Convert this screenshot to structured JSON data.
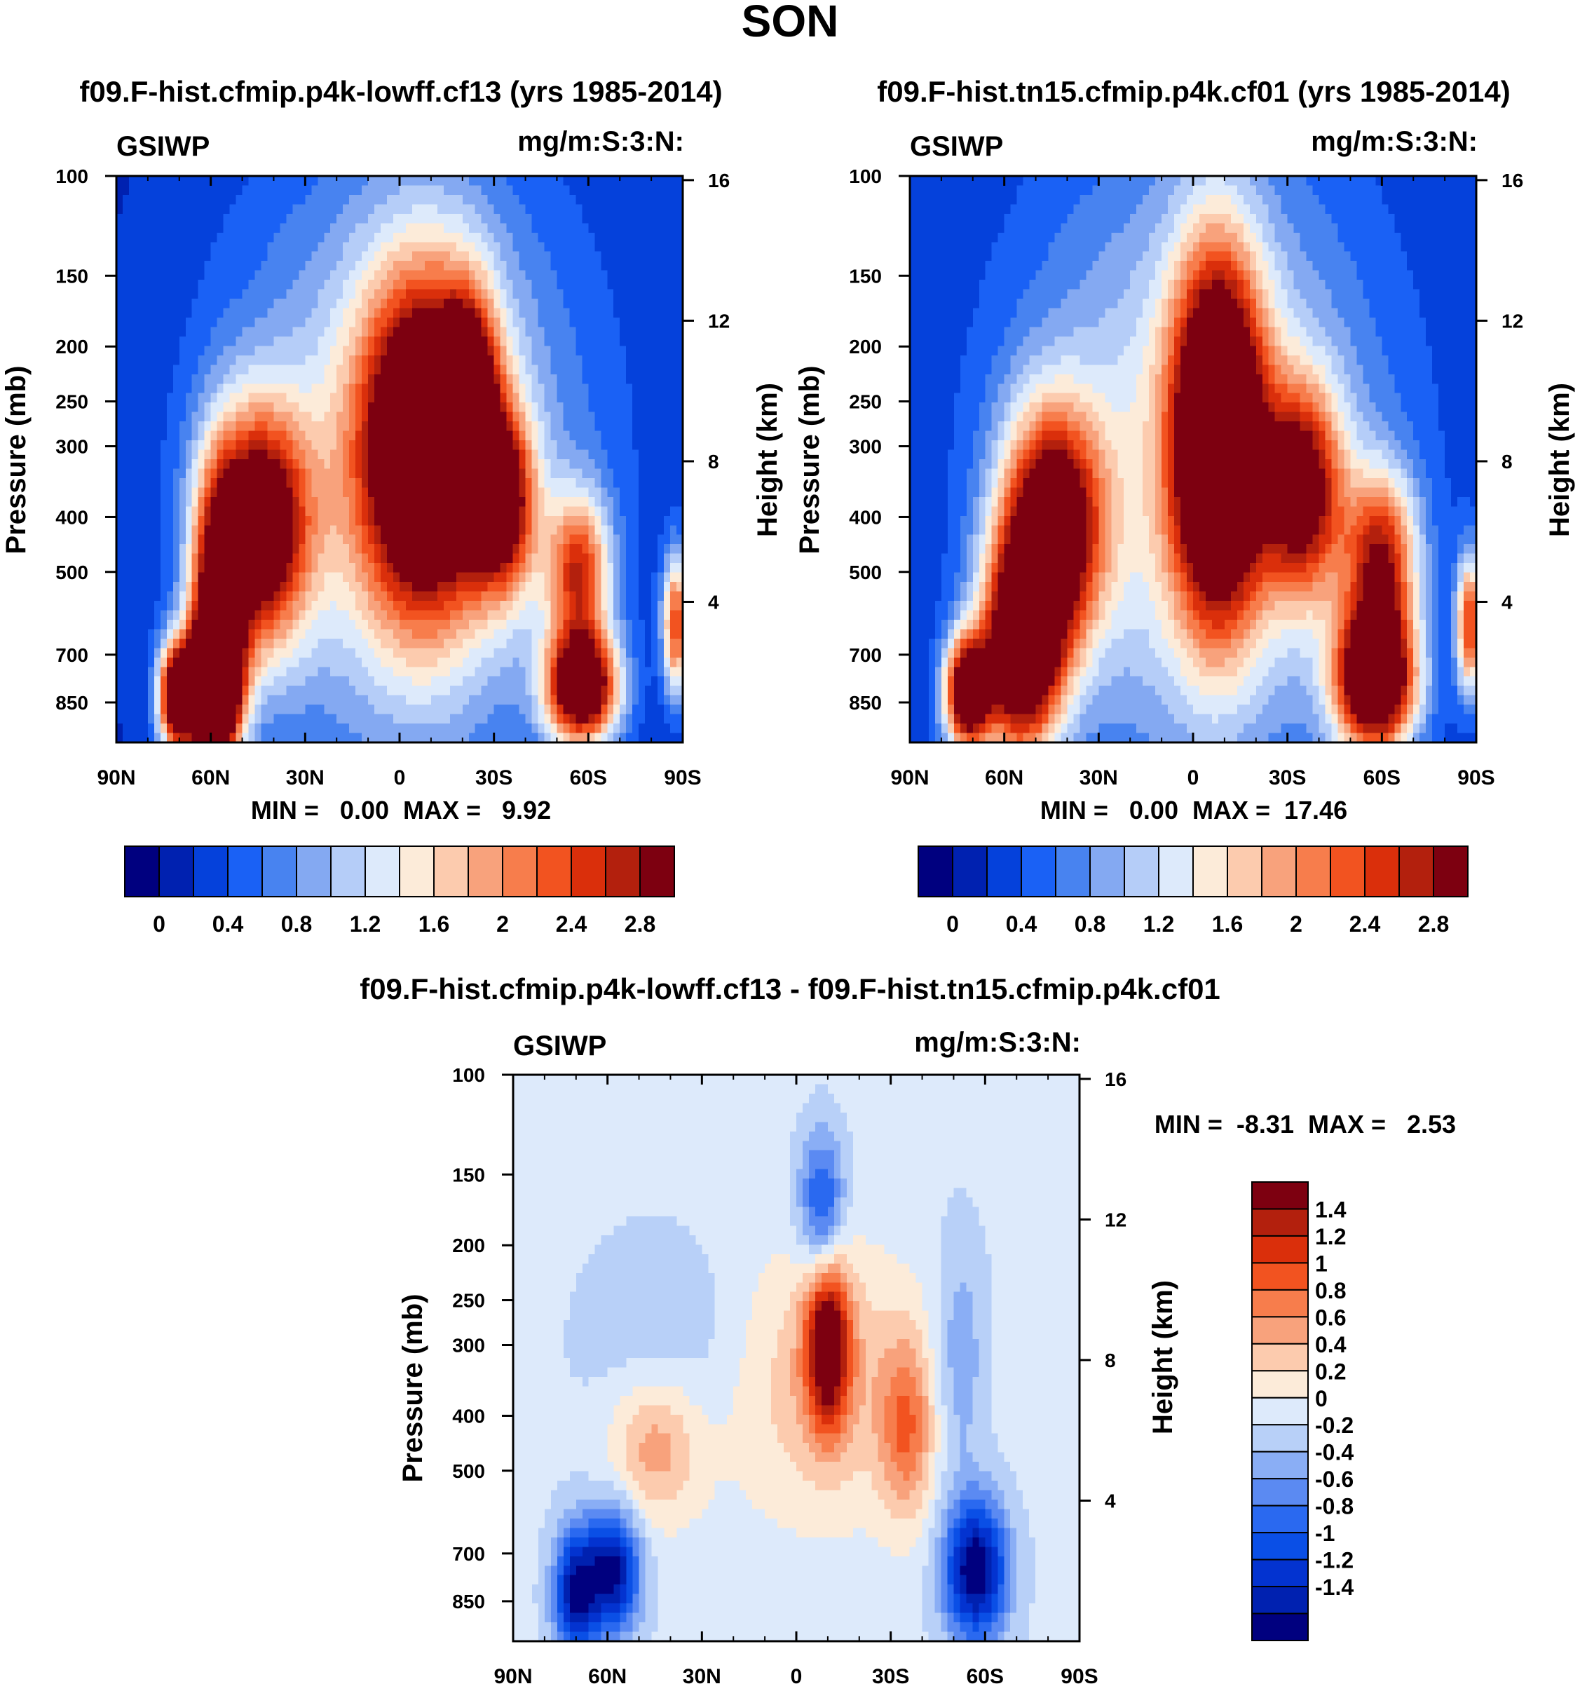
{
  "figure_title": "SON",
  "chart_data": [
    {
      "type": "heatmap",
      "title": "f09.F-hist.cfmip.p4k-lowff.cf13 (yrs 1985-2014)",
      "left_label": "GSIWP",
      "right_label": "mg/m:S:3:N:",
      "ylabel": "Pressure (mb)",
      "y2label": "Height (km)",
      "xticks": [
        "90N",
        "60N",
        "30N",
        "0",
        "30S",
        "60S",
        "90S"
      ],
      "xlim": [
        90,
        -90
      ],
      "yticks": [
        100,
        150,
        200,
        250,
        300,
        400,
        500,
        700,
        850
      ],
      "ylim": [
        100,
        1000
      ],
      "yscale": "log",
      "y2ticks": [
        16,
        12,
        8,
        4
      ],
      "stats": "MIN =   0.00  MAX =   9.92",
      "colorbar": {
        "orientation": "horizontal",
        "colors": [
          "#00007f",
          "#0021b0",
          "#0541db",
          "#1a61f5",
          "#4883f0",
          "#84a9f2",
          "#b5cdf8",
          "#ddeafb",
          "#fcebd9",
          "#fccbae",
          "#f8a27c",
          "#f77d4c",
          "#f25320",
          "#da2f0b",
          "#b3200d",
          "#7d0010"
        ],
        "tick_labels": [
          "0",
          "0.4",
          "0.8",
          "1.2",
          "1.6",
          "2",
          "2.4",
          "2.8"
        ]
      },
      "features": [
        {
          "lat": -8,
          "p": 300,
          "amp": 3.2,
          "sx": 14,
          "sz": 0.48
        },
        {
          "lat": 45,
          "p": 420,
          "amp": 3.0,
          "sx": 11,
          "sz": 0.34
        },
        {
          "lat": 58,
          "p": 650,
          "amp": 2.6,
          "sx": 6,
          "sz": 0.42
        },
        {
          "lat": 71,
          "p": 830,
          "amp": 3.2,
          "sx": 4,
          "sz": 0.15
        },
        {
          "lat": 60,
          "p": 800,
          "amp": 3.2,
          "sx": 6,
          "sz": 0.18
        },
        {
          "lat": -58,
          "p": 800,
          "amp": 3.4,
          "sx": 8,
          "sz": 0.16
        },
        {
          "lat": -22,
          "p": 260,
          "amp": 2.2,
          "sx": 6,
          "sz": 0.3
        },
        {
          "lat": -33,
          "p": 380,
          "amp": 2.2,
          "sx": 7,
          "sz": 0.25
        },
        {
          "lat": -57,
          "p": 500,
          "amp": 2.0,
          "sx": 7,
          "sz": 0.22
        },
        {
          "lat": -88,
          "p": 620,
          "amp": 2.2,
          "sx": 3,
          "sz": 0.2
        }
      ],
      "envelope": {
        "bg": 0.15,
        "amp": 1.3,
        "sx": 40,
        "center_lat": -2,
        "p": 330,
        "sz": 0.9
      }
    },
    {
      "type": "heatmap",
      "title": "f09.F-hist.tn15.cfmip.p4k.cf01 (yrs 1985-2014)",
      "left_label": "GSIWP",
      "right_label": "mg/m:S:3:N:",
      "ylabel": "Pressure (mb)",
      "y2label": "Height (km)",
      "xticks": [
        "90N",
        "60N",
        "30N",
        "0",
        "30S",
        "60S",
        "90S"
      ],
      "xlim": [
        90,
        -90
      ],
      "yticks": [
        100,
        150,
        200,
        250,
        300,
        400,
        500,
        700,
        850
      ],
      "ylim": [
        100,
        1000
      ],
      "yscale": "log",
      "y2ticks": [
        16,
        12,
        8,
        4
      ],
      "stats": "MIN =   0.00  MAX =  17.46",
      "colorbar": {
        "orientation": "horizontal",
        "colors": [
          "#00007f",
          "#0021b0",
          "#0541db",
          "#1a61f5",
          "#4883f0",
          "#84a9f2",
          "#b5cdf8",
          "#ddeafb",
          "#fcebd9",
          "#fccbae",
          "#f8a27c",
          "#f77d4c",
          "#f25320",
          "#da2f0b",
          "#b3200d",
          "#7d0010"
        ],
        "tick_labels": [
          "0",
          "0.4",
          "0.8",
          "1.2",
          "1.6",
          "2",
          "2.4",
          "2.8"
        ]
      },
      "features": [
        {
          "lat": -8,
          "p": 290,
          "amp": 3.6,
          "sx": 10,
          "sz": 0.52
        },
        {
          "lat": 45,
          "p": 420,
          "amp": 3.0,
          "sx": 11,
          "sz": 0.34
        },
        {
          "lat": 55,
          "p": 700,
          "amp": 3.2,
          "sx": 9,
          "sz": 0.3
        },
        {
          "lat": 72,
          "p": 820,
          "amp": 3.2,
          "sx": 5,
          "sz": 0.16
        },
        {
          "lat": -58,
          "p": 780,
          "amp": 3.6,
          "sx": 9,
          "sz": 0.2
        },
        {
          "lat": -35,
          "p": 360,
          "amp": 2.3,
          "sx": 9,
          "sz": 0.3
        },
        {
          "lat": -60,
          "p": 480,
          "amp": 2.2,
          "sx": 8,
          "sz": 0.25
        },
        {
          "lat": -88,
          "p": 620,
          "amp": 2.2,
          "sx": 3,
          "sz": 0.2
        }
      ],
      "envelope": {
        "bg": 0.15,
        "amp": 1.3,
        "sx": 42,
        "center_lat": -2,
        "p": 330,
        "sz": 0.95
      }
    },
    {
      "type": "heatmap",
      "title": "f09.F-hist.cfmip.p4k-lowff.cf13 - f09.F-hist.tn15.cfmip.p4k.cf01",
      "left_label": "GSIWP",
      "right_label": "mg/m:S:3:N:",
      "ylabel": "Pressure (mb)",
      "y2label": "Height (km)",
      "xticks": [
        "90N",
        "60N",
        "30N",
        "0",
        "30S",
        "60S",
        "90S"
      ],
      "xlim": [
        90,
        -90
      ],
      "yticks": [
        100,
        150,
        200,
        250,
        300,
        400,
        500,
        700,
        850
      ],
      "ylim": [
        100,
        1000
      ],
      "yscale": "log",
      "y2ticks": [
        16,
        12,
        8,
        4
      ],
      "stats": "MIN =  -8.31  MAX =   2.53",
      "colorbar": {
        "orientation": "vertical",
        "colors": [
          "#00007f",
          "#0021b0",
          "#0333d0",
          "#0a4fe6",
          "#2a69f0",
          "#5b8af2",
          "#8aaef5",
          "#b8d0f8",
          "#ddeafb",
          "#fcebd9",
          "#fccbae",
          "#f8a27c",
          "#f77d4c",
          "#f25320",
          "#da2f0b",
          "#b3200d",
          "#7d0010"
        ],
        "tick_labels": [
          "1.4",
          "1.2",
          "1",
          "0.8",
          "0.6",
          "0.4",
          "0.2",
          "0",
          "-0.2",
          "-0.4",
          "-0.6",
          "-0.8",
          "-1",
          "-1.2",
          "-1.4"
        ]
      },
      "features": [
        {
          "lat": -8,
          "p": 170,
          "amp": -1.0,
          "sx": 5,
          "sz": 0.2
        },
        {
          "lat": -10,
          "p": 300,
          "amp": 1.7,
          "sx": 5,
          "sz": 0.24
        },
        {
          "lat": 45,
          "p": 450,
          "amp": 0.7,
          "sx": 10,
          "sz": 0.22
        },
        {
          "lat": -35,
          "p": 420,
          "amp": 0.8,
          "sx": 6,
          "sz": 0.25
        },
        {
          "lat": -8,
          "p": 350,
          "amp": 0.5,
          "sx": 24,
          "sz": 0.4
        },
        {
          "lat": 70,
          "p": 820,
          "amp": -1.5,
          "sx": 5,
          "sz": 0.18
        },
        {
          "lat": 58,
          "p": 750,
          "amp": -1.5,
          "sx": 6,
          "sz": 0.18
        },
        {
          "lat": -57,
          "p": 750,
          "amp": -1.7,
          "sx": 7,
          "sz": 0.2
        },
        {
          "lat": -52,
          "p": 320,
          "amp": -0.45,
          "sx": 6,
          "sz": 0.35
        },
        {
          "lat": 40,
          "p": 300,
          "amp": -0.3,
          "sx": 18,
          "sz": 0.3
        }
      ],
      "envelope": {
        "bg": 0.05,
        "amp": 0.0,
        "sx": 40,
        "center_lat": 0,
        "p": 400,
        "sz": 0.9
      }
    }
  ]
}
